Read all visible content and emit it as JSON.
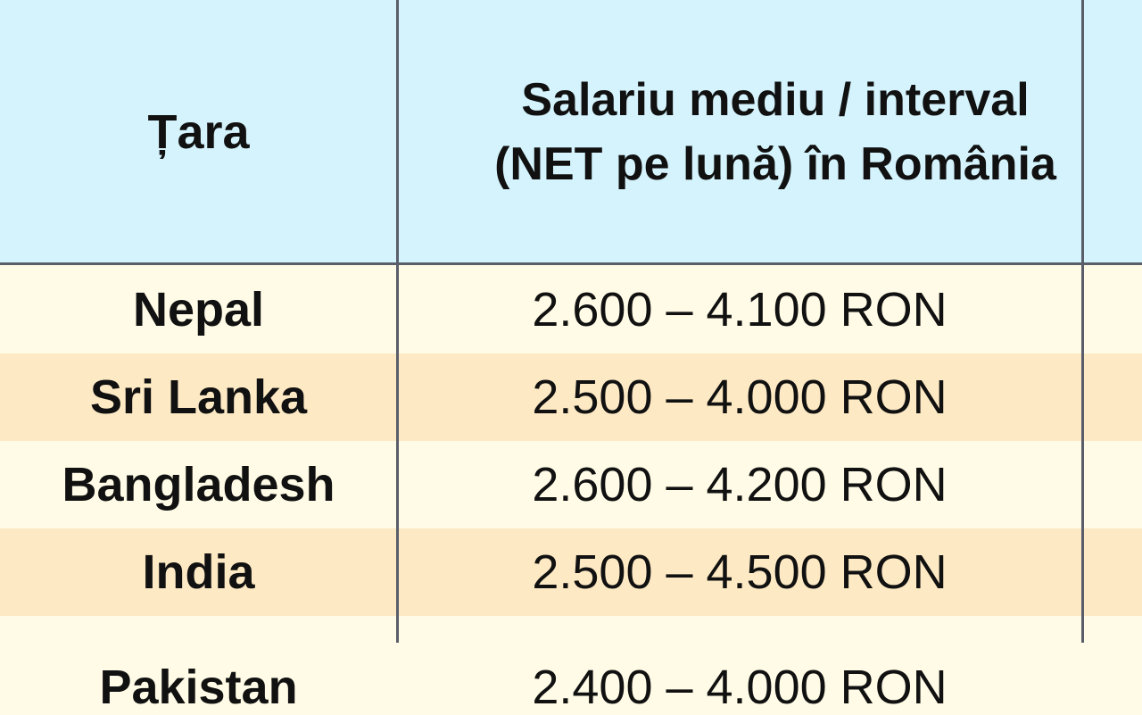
{
  "table": {
    "headers": [
      "Țara",
      "Salariu mediu / interval (NET pe lună) în România"
    ],
    "rows": [
      {
        "country": "Nepal",
        "salary": "2.600 – 4.100 RON"
      },
      {
        "country": "Sri Lanka",
        "salary": "2.500 – 4.000 RON"
      },
      {
        "country": "Bangladesh",
        "salary": "2.600 – 4.200 RON"
      },
      {
        "country": "India",
        "salary": "2.500 – 4.500 RON"
      },
      {
        "country": "Pakistan",
        "salary": "2.400 – 4.000 RON"
      }
    ]
  },
  "colors": {
    "header": "#d4f3fc",
    "row_light": "#fffbe6",
    "row_alt": "#fde9c4",
    "grid": "#5a5e6a"
  }
}
